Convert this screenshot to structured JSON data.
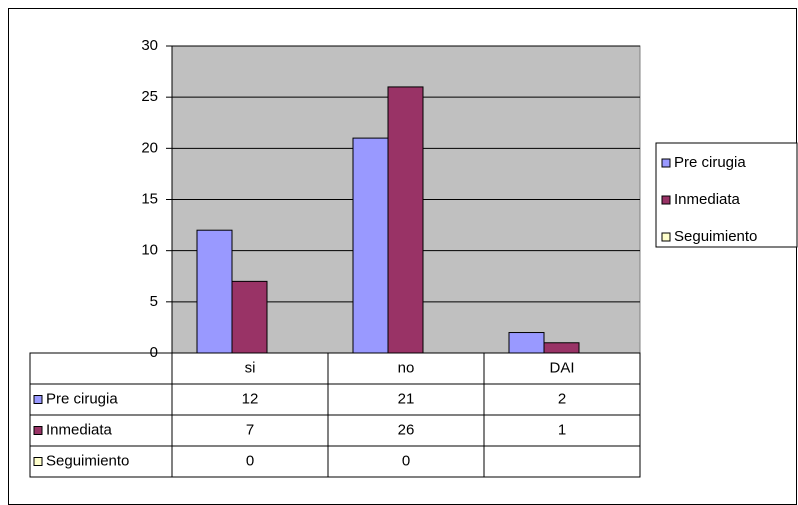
{
  "chart_data": {
    "type": "bar",
    "categories": [
      "si",
      "no",
      "DAI"
    ],
    "series": [
      {
        "name": "Pre cirugia",
        "color": "#9999ff",
        "values": [
          12,
          21,
          2
        ]
      },
      {
        "name": "Inmediata",
        "color": "#993366",
        "values": [
          7,
          26,
          1
        ]
      },
      {
        "name": "Seguimiento",
        "color": "#ffffcc",
        "values": [
          0,
          0,
          null
        ]
      }
    ],
    "ylim": [
      0,
      30
    ],
    "yticks": [
      0,
      5,
      10,
      15,
      20,
      25,
      30
    ],
    "grid": true,
    "legend": "right",
    "data_table": true
  }
}
